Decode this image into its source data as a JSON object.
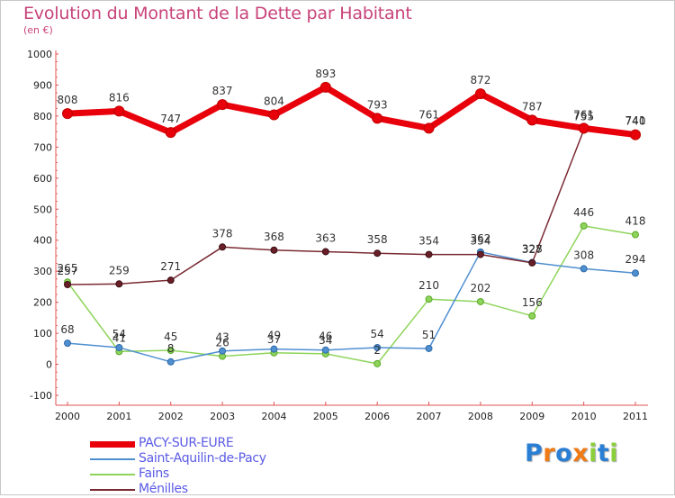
{
  "chart_data": {
    "type": "line",
    "title": "Evolution du Montant de la Dette par Habitant",
    "subtitle": "(en €)",
    "x": [
      "2000",
      "2001",
      "2002",
      "2003",
      "2004",
      "2005",
      "2006",
      "2007",
      "2008",
      "2009",
      "2010",
      "2011"
    ],
    "ylim": [
      -100,
      1000
    ],
    "yticks": [
      -100,
      0,
      100,
      200,
      300,
      400,
      500,
      600,
      700,
      800,
      900,
      1000
    ],
    "grid": false,
    "legend_position": "bottom-left",
    "series": [
      {
        "name": "PACY-SUR-EURE",
        "color": "#e8000b",
        "values": [
          808,
          816,
          747,
          837,
          804,
          893,
          793,
          761,
          872,
          787,
          761,
          740
        ]
      },
      {
        "name": "Saint-Aquilin-de-Pacy",
        "color": "#4f8fd0",
        "values": [
          68,
          54,
          8,
          43,
          49,
          46,
          54,
          51,
          362,
          328,
          308,
          294
        ]
      },
      {
        "name": "Fains",
        "color": "#8ed45a",
        "values": [
          265,
          41,
          45,
          26,
          37,
          34,
          2,
          210,
          202,
          156,
          446,
          418
        ]
      },
      {
        "name": "Ménilles",
        "color": "#7a2a32",
        "values": [
          257,
          259,
          271,
          378,
          368,
          363,
          358,
          354,
          354,
          327,
          755,
          741
        ]
      }
    ]
  },
  "logo": {
    "letters": [
      "P",
      "r",
      "o",
      "x",
      "i",
      "t",
      "i"
    ],
    "colors": [
      "#2a7fd4",
      "#f07a14",
      "#2a7fd4",
      "#f07a14",
      "#8ccf3c",
      "#2a7fd4",
      "#8ccf3c"
    ]
  }
}
